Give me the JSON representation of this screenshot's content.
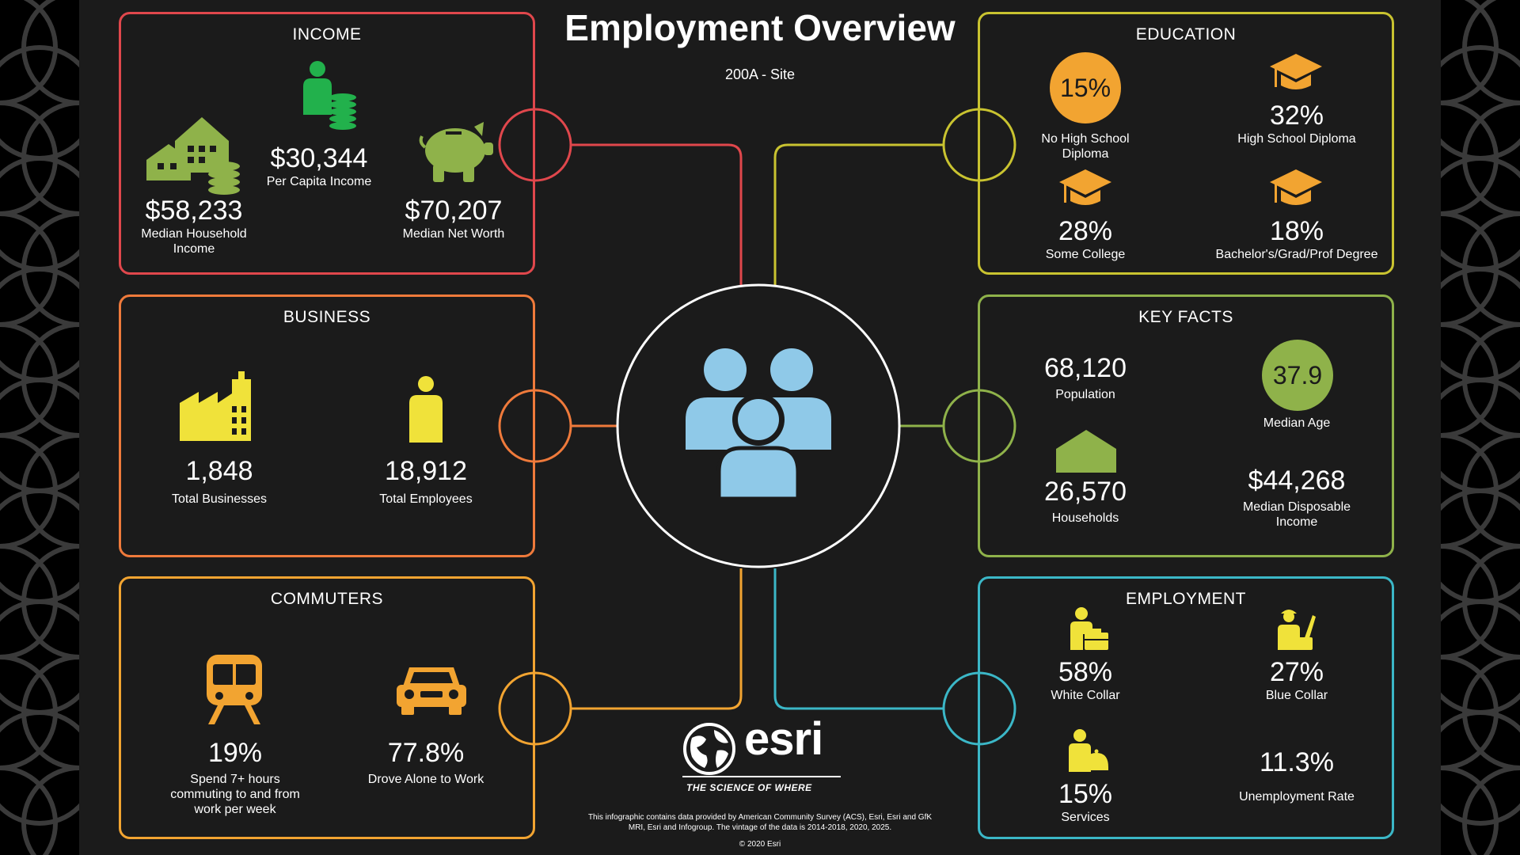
{
  "header": {
    "title": "Employment Overview",
    "subtitle": "200A - Site"
  },
  "colors": {
    "income": "#e0474c",
    "business": "#ef7a3b",
    "commuters": "#f2a431",
    "education": "#c9c330",
    "key_facts": "#8fb24a",
    "employment": "#3bb7c7",
    "center": "#ffffff",
    "people_icon": "#8fc9e8"
  },
  "income": {
    "title": "INCOME",
    "per_capita": {
      "value": "$30,344",
      "label": "Per Capita Income"
    },
    "median_household": {
      "value": "$58,233",
      "label1": "Median Household",
      "label2": "Income"
    },
    "median_net_worth": {
      "value": "$70,207",
      "label": "Median Net Worth"
    }
  },
  "business": {
    "title": "BUSINESS",
    "total_businesses": {
      "value": "1,848",
      "label": "Total Businesses"
    },
    "total_employees": {
      "value": "18,912",
      "label": "Total Employees"
    }
  },
  "commuters": {
    "title": "COMMUTERS",
    "long_commute": {
      "value": "19%",
      "label1": "Spend 7+ hours",
      "label2": "commuting to and from",
      "label3": "work per week"
    },
    "drove_alone": {
      "value": "77.8%",
      "label": "Drove Alone to Work"
    }
  },
  "education": {
    "title": "EDUCATION",
    "no_high_school": {
      "value": "15%",
      "label1": "No High School",
      "label2": "Diploma"
    },
    "high_school": {
      "value": "32%",
      "label": "High School Diploma"
    },
    "some_college": {
      "value": "28%",
      "label": "Some College"
    },
    "bachelors": {
      "value": "18%",
      "label": "Bachelor's/Grad/Prof Degree"
    }
  },
  "key_facts": {
    "title": "KEY FACTS",
    "population": {
      "value": "68,120",
      "label": "Population"
    },
    "median_age": {
      "value": "37.9",
      "label": "Median Age"
    },
    "households": {
      "value": "26,570",
      "label": "Households"
    },
    "disposable_income": {
      "value": "$44,268",
      "label1": "Median Disposable",
      "label2": "Income"
    }
  },
  "employment": {
    "title": "EMPLOYMENT",
    "white_collar": {
      "value": "58%",
      "label": "White Collar"
    },
    "blue_collar": {
      "value": "27%",
      "label": "Blue Collar"
    },
    "services": {
      "value": "15%",
      "label": "Services"
    },
    "unemployment": {
      "value": "11.3%",
      "label": "Unemployment Rate"
    }
  },
  "brand": {
    "name": "esri",
    "tagline": "THE SCIENCE OF WHERE"
  },
  "footer": {
    "note1": "This infographic contains data provided by American Community Survey (ACS), Esri, Esri and GfK",
    "note2": "MRI, Esri and Infogroup. The vintage of the data is 2014-2018, 2020, 2025.",
    "copyright": "© 2020 Esri"
  }
}
